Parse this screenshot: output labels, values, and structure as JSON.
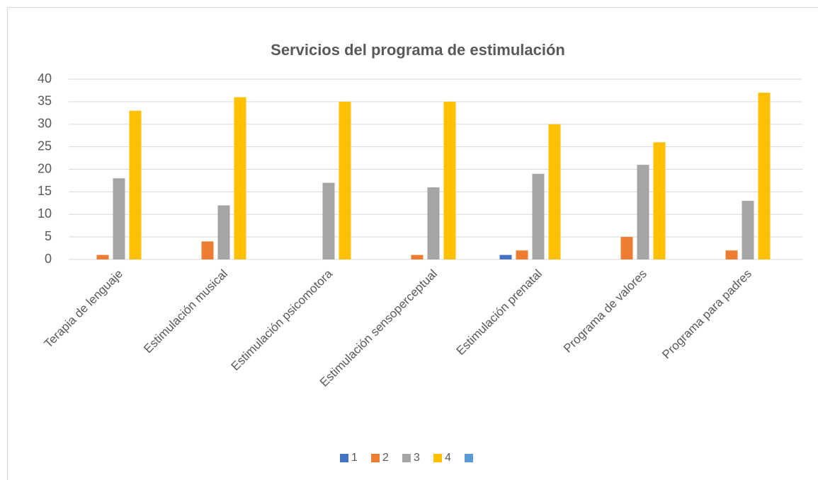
{
  "chart_data": {
    "type": "bar",
    "title": "Servicios del programa de estimulación",
    "categories": [
      "Terapia de lenguaje",
      "Estimulación musical",
      "Estimulación psicomotora",
      "Estimulación sensoperceptual",
      "Estimulación prenatal",
      "Programa de valores",
      "Programa para padres"
    ],
    "series": [
      {
        "name": "1",
        "color": "#4472c4",
        "values": [
          0,
          0,
          0,
          0,
          1,
          0,
          0
        ]
      },
      {
        "name": "2",
        "color": "#ed7d31",
        "values": [
          1,
          4,
          0,
          1,
          2,
          5,
          2
        ]
      },
      {
        "name": "3",
        "color": "#a5a5a5",
        "values": [
          18,
          12,
          17,
          16,
          19,
          21,
          13
        ]
      },
      {
        "name": "4",
        "color": "#ffc000",
        "values": [
          33,
          36,
          35,
          35,
          30,
          26,
          37
        ]
      },
      {
        "name": null,
        "color": "#5b9bd5",
        "values": [
          null,
          null,
          null,
          null,
          null,
          null,
          null
        ]
      }
    ],
    "ylim": [
      0,
      40
    ],
    "yticks": [
      0,
      5,
      10,
      15,
      20,
      25,
      30,
      35,
      40
    ],
    "grid": true,
    "legend": "bottom"
  }
}
